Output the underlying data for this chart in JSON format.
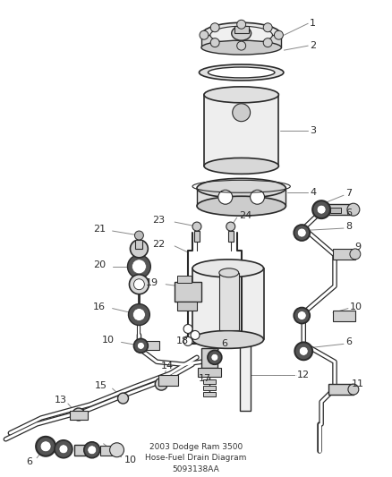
{
  "title": "2003 Dodge Ram 3500\nHose-Fuel Drain Diagram\n5093138AA",
  "background_color": "#ffffff",
  "line_color": "#2a2a2a",
  "fig_width": 4.38,
  "fig_height": 5.33,
  "dpi": 100
}
